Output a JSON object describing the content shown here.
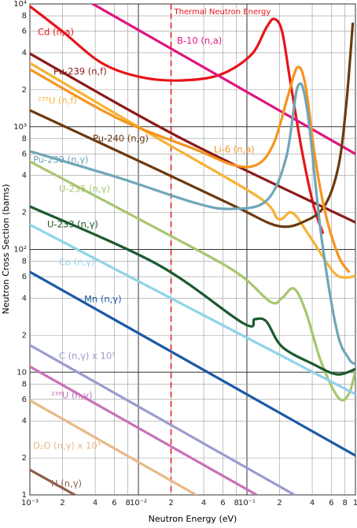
{
  "chart_data": {
    "type": "line",
    "xlabel": "Neutron Energy (eV)",
    "ylabel": "Neutron Cross Section (barns)",
    "xscale": "log",
    "yscale": "log",
    "grid": true,
    "xlim": [
      0.001,
      1
    ],
    "ylim": [
      1,
      10000
    ],
    "xticks": [
      {
        "value": 0.001,
        "label": "10⁻³"
      },
      {
        "value": 0.002,
        "label": "2"
      },
      {
        "value": 0.004,
        "label": "4"
      },
      {
        "value": 0.006,
        "label": "6"
      },
      {
        "value": 0.008,
        "label": "8"
      },
      {
        "value": 0.01,
        "label": "10⁻²"
      },
      {
        "value": 0.02,
        "label": "2"
      },
      {
        "value": 0.04,
        "label": "4"
      },
      {
        "value": 0.06,
        "label": "6"
      },
      {
        "value": 0.08,
        "label": "8"
      },
      {
        "value": 0.1,
        "label": "10⁻¹"
      },
      {
        "value": 0.2,
        "label": "2"
      },
      {
        "value": 0.4,
        "label": "4"
      },
      {
        "value": 0.6,
        "label": "6"
      },
      {
        "value": 0.8,
        "label": "8"
      },
      1
    ],
    "yticks": [
      1,
      2,
      4,
      6,
      8,
      10,
      {
        "value": 20,
        "label": "2"
      },
      {
        "value": 40,
        "label": "4"
      },
      {
        "value": 60,
        "label": "6"
      },
      {
        "value": 80,
        "label": "8"
      },
      {
        "value": 100,
        "label": "10²"
      },
      {
        "value": 200,
        "label": "2"
      },
      {
        "value": 400,
        "label": "4"
      },
      {
        "value": 600,
        "label": "6"
      },
      {
        "value": 800,
        "label": "8"
      },
      {
        "value": 1000,
        "label": "10³"
      },
      {
        "value": 2000,
        "label": "2"
      },
      {
        "value": 4000,
        "label": "4"
      },
      {
        "value": 6000,
        "label": "6"
      },
      {
        "value": 8000,
        "label": "8"
      },
      {
        "value": 10000,
        "label": "10⁴"
      }
    ],
    "annotations": [
      {
        "text": "Thermal Neutron Energy",
        "x": 0.02,
        "color": "#e8141b"
      }
    ],
    "series": [
      {
        "name": "Cd (n,a)",
        "color": "#e8141b",
        "x": [
          0.001,
          0.002,
          0.0046,
          0.0106,
          0.0243,
          0.0558,
          0.109,
          0.151,
          0.179,
          0.211,
          0.249,
          0.32,
          0.41,
          0.5
        ],
        "values": [
          9570,
          5960,
          3300,
          2530,
          2380,
          2640,
          3830,
          6410,
          7550,
          5960,
          2450,
          649,
          231,
          137
        ]
      },
      {
        "name": "B-10 (n,a)",
        "color": "#e0157f",
        "x": [
          0.0038,
          1
        ],
        "values": [
          10000,
          600
        ]
      },
      {
        "name": "Pu-239 (n,f)",
        "color": "#8b1a1a",
        "x": [
          0.001,
          0.0243,
          1
        ],
        "values": [
          3940,
          811,
          166
        ]
      },
      {
        "name": "²³⁵U (n,f)",
        "color": "#f5b335",
        "x": [
          0.001,
          0.0148,
          0.128,
          0.195,
          0.262,
          0.379,
          0.623,
          0.8,
          1
        ],
        "values": [
          3300,
          811,
          267,
          177,
          199,
          128,
          66,
          59,
          61
        ]
      },
      {
        "name": "Pu-240 (n,g)",
        "color": "#6b3a0f",
        "x": [
          0.001,
          0.0148,
          0.078,
          0.195,
          0.348,
          0.527,
          0.7,
          0.826,
          0.945
        ],
        "values": [
          1360,
          449,
          224,
          155,
          171,
          231,
          483,
          1570,
          6900
        ]
      },
      {
        "name": "Li-6 (n,a)",
        "color": "#f7941d",
        "x": [
          0.001,
          0.00644,
          0.034,
          0.078,
          0.128,
          0.179,
          0.241,
          0.294,
          0.348,
          0.425,
          0.527,
          0.7,
          0.869
        ],
        "values": [
          2930,
          1170,
          649,
          483,
          498,
          751,
          1830,
          3060,
          2120,
          560,
          199,
          88,
          66
        ]
      },
      {
        "name": "Pu-239 (n,γ)",
        "color": "#6fa6b8",
        "x": [
          0.001,
          0.00644,
          0.034,
          0.0718,
          0.151,
          0.23,
          0.294,
          0.36,
          0.485,
          0.676,
          0.869,
          1
        ],
        "values": [
          631,
          386,
          238,
          214,
          249,
          560,
          2120,
          1360,
          128,
          21.6,
          12.9,
          11.6
        ]
      },
      {
        "name": "U-235 (n,γ)",
        "color": "#a8c66f",
        "x": [
          0.001,
          0.0148,
          0.078,
          0.165,
          0.211,
          0.271,
          0.348,
          0.485,
          0.7,
          0.869,
          1
        ],
        "values": [
          520,
          148,
          66,
          37.4,
          40.3,
          48,
          31.3,
          12,
          6.17,
          6.64,
          10.3
        ]
      },
      {
        "name": "U-233 (n,γ)",
        "color": "#1d5a2f",
        "x": [
          0.001,
          0.0148,
          0.092,
          0.118,
          0.151,
          0.211,
          0.41,
          0.676,
          1
        ],
        "values": [
          224,
          76,
          25.1,
          27,
          25.9,
          16.1,
          11.6,
          9.6,
          10.6
        ]
      },
      {
        "name": "Co (n,γ)",
        "color": "#8fd3ea",
        "x": [
          0.001,
          1
        ],
        "values": [
          159,
          6.6
        ]
      },
      {
        "name": "Mn (n,γ)",
        "color": "#1c5aa6",
        "x": [
          0.001,
          1
        ],
        "values": [
          65.6,
          2.09
        ]
      },
      {
        "name": "C (n,γ) x 10³",
        "color": "#9a9ccf",
        "x": [
          0.001,
          0.275
        ],
        "values": [
          16.6,
          1
        ]
      },
      {
        "name": "²³⁸U (n,γ)",
        "color": "#c871b9",
        "x": [
          0.001,
          0.123
        ],
        "values": [
          11.1,
          1
        ]
      },
      {
        "name": "D₂O (n,γ) x 10³",
        "color": "#e8b98a",
        "x": [
          0.001,
          0.034
        ],
        "values": [
          5.89,
          1
        ]
      },
      {
        "name": "H (n,γ)",
        "color": "#8c5e48",
        "x": [
          0.001,
          0.0026
        ],
        "values": [
          1.6,
          1
        ]
      }
    ]
  }
}
